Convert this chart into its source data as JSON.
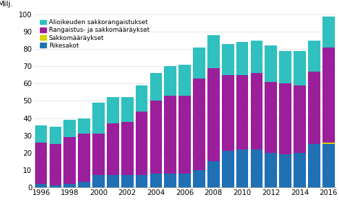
{
  "years": [
    1996,
    1997,
    1998,
    1999,
    2000,
    2001,
    2002,
    2003,
    2004,
    2005,
    2006,
    2007,
    2008,
    2009,
    2010,
    2011,
    2012,
    2013,
    2014,
    2015,
    2016
  ],
  "rikesakot": [
    2,
    1,
    2,
    3,
    7,
    7,
    7,
    7,
    8,
    8,
    8,
    10,
    15,
    21,
    22,
    22,
    20,
    19,
    20,
    25,
    25
  ],
  "sakkomaaraykset": [
    0,
    0,
    0,
    0,
    0,
    0,
    0,
    0,
    0,
    0,
    0,
    0,
    0,
    0,
    0,
    0,
    0,
    0,
    0,
    0,
    1
  ],
  "rangaistus": [
    24,
    24,
    27,
    28,
    24,
    30,
    31,
    37,
    42,
    45,
    45,
    53,
    54,
    44,
    43,
    44,
    41,
    41,
    39,
    42,
    55
  ],
  "alioikeuden": [
    10,
    10,
    10,
    9,
    18,
    15,
    14,
    15,
    16,
    17,
    18,
    18,
    19,
    18,
    19,
    19,
    21,
    19,
    20,
    18,
    18
  ],
  "color_rikesakot": "#2070b4",
  "color_sakkomaaraykset": "#d4d400",
  "color_rangaistus": "#9b1f9b",
  "color_alioikeuden": "#30c0c0",
  "title": "Milj.",
  "ylim": [
    0,
    100
  ],
  "yticks": [
    0,
    10,
    20,
    30,
    40,
    50,
    60,
    70,
    80,
    90,
    100
  ],
  "legend_labels": [
    "Alioikeuden sakkorangaistukset",
    "Rangaistus- ja sakkomääräykset",
    "Sakkomääräykset",
    "Rikesakot"
  ],
  "bg_color": "#ffffff"
}
